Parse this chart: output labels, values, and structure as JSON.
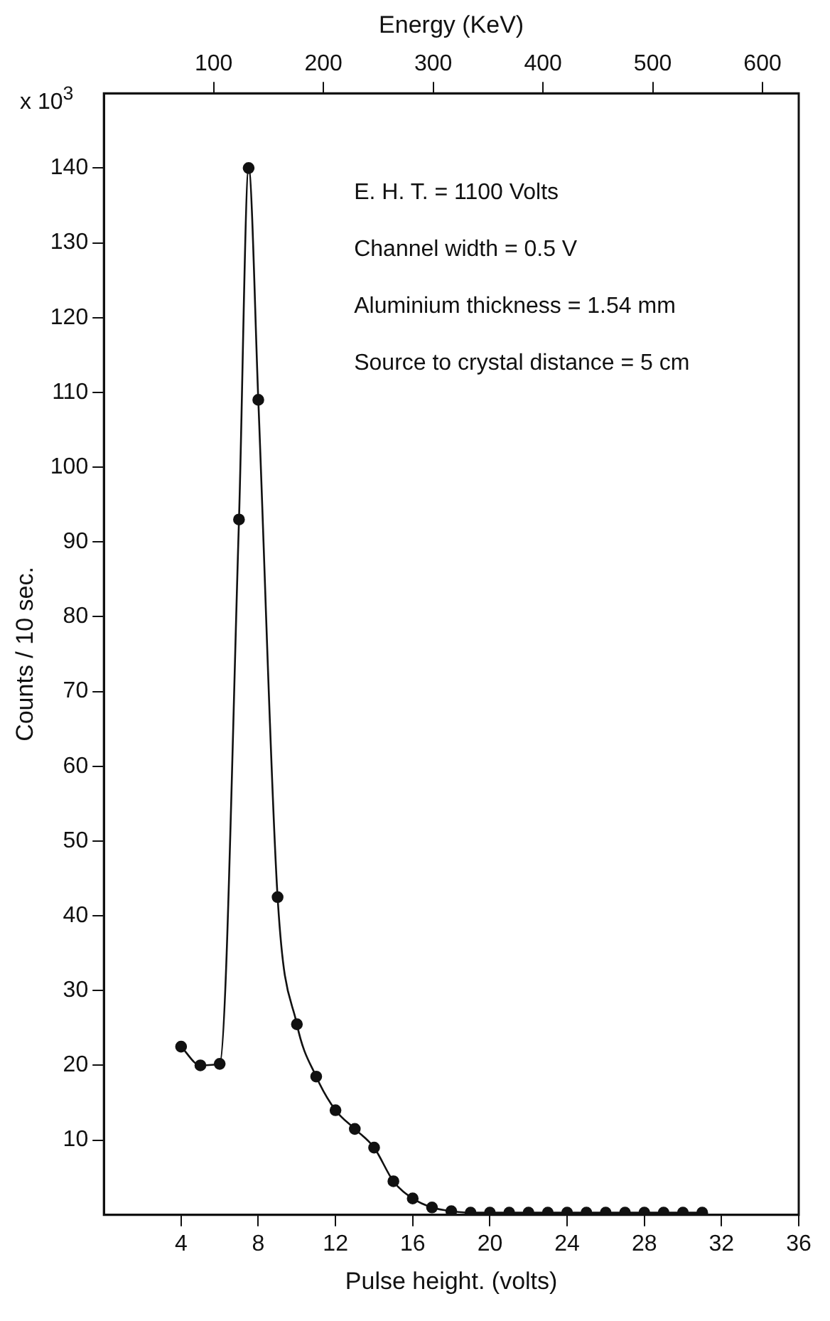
{
  "chart_data": {
    "type": "line",
    "xlabel": "Pulse height. (volts)",
    "ylabel": "Counts / 10 sec.",
    "x2label": "Energy (KeV)",
    "x": [
      4,
      5,
      6,
      7,
      7.5,
      8,
      9,
      10,
      11,
      12,
      13,
      14,
      15,
      16,
      17,
      18,
      19,
      20,
      21,
      22,
      23,
      24,
      25,
      26,
      27,
      28,
      29,
      30,
      31
    ],
    "series": [
      {
        "color": "#111111",
        "values": [
          22.5,
          20,
          20.2,
          93,
          140,
          109,
          42.5,
          25.5,
          18.5,
          14,
          11.5,
          9,
          4.5,
          2.2,
          1,
          0.5,
          0.3,
          0.3,
          0.3,
          0.3,
          0.3,
          0.3,
          0.3,
          0.3,
          0.3,
          0.3,
          0.3,
          0.3,
          0.3
        ]
      }
    ],
    "xlim": [
      0,
      36
    ],
    "xticks": [
      4,
      8,
      12,
      16,
      20,
      24,
      28,
      32,
      36
    ],
    "ylim": [
      0,
      150
    ],
    "yticks": [
      10,
      20,
      30,
      40,
      50,
      60,
      70,
      80,
      90,
      100,
      110,
      120,
      130,
      140
    ],
    "x2lim": [
      0,
      633
    ],
    "x2ticks": [
      100,
      200,
      300,
      400,
      500,
      600
    ],
    "marker": "circle",
    "line_style": "solid",
    "grid": false,
    "legend": false,
    "annotations": [
      "x 10$^{3}$",
      "E. H. T. = 1100 Volts",
      "Channel width = 0.5 V",
      "Aluminium thickness = 1.54 mm",
      "Source to crystal distance = 5 cm"
    ]
  }
}
